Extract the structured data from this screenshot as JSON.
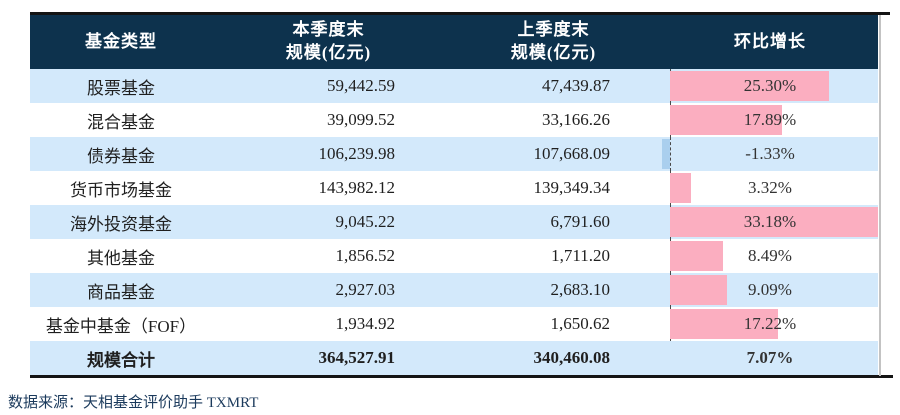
{
  "table": {
    "columns": [
      {
        "label": "基金类型"
      },
      {
        "label": "本季度末",
        "sub": "规模(亿元)"
      },
      {
        "label": "上季度末",
        "sub": "规模(亿元)"
      },
      {
        "label": "环比增长"
      }
    ],
    "rows": [
      {
        "fund_type": "股票基金",
        "current": "59,442.59",
        "previous": "47,439.87",
        "growth": "25.30%",
        "growth_value": 25.3
      },
      {
        "fund_type": "混合基金",
        "current": "39,099.52",
        "previous": "33,166.26",
        "growth": "17.89%",
        "growth_value": 17.89
      },
      {
        "fund_type": "债券基金",
        "current": "106,239.98",
        "previous": "107,668.09",
        "growth": "-1.33%",
        "growth_value": -1.33
      },
      {
        "fund_type": "货币市场基金",
        "current": "143,982.12",
        "previous": "139,349.34",
        "growth": "3.32%",
        "growth_value": 3.32
      },
      {
        "fund_type": "海外投资基金",
        "current": "9,045.22",
        "previous": "6,791.60",
        "growth": "33.18%",
        "growth_value": 33.18
      },
      {
        "fund_type": "其他基金",
        "current": "1,856.52",
        "previous": "1,711.20",
        "growth": "8.49%",
        "growth_value": 8.49
      },
      {
        "fund_type": "商品基金",
        "current": "2,927.03",
        "previous": "2,683.10",
        "growth": "9.09%",
        "growth_value": 9.09
      },
      {
        "fund_type": "基金中基金（FOF）",
        "current": "1,934.92",
        "previous": "1,650.62",
        "growth": "17.22%",
        "growth_value": 17.22
      }
    ],
    "total": {
      "fund_type": "规模合计",
      "current": "364,527.91",
      "previous": "340,460.08",
      "growth": "7.07%"
    }
  },
  "chart_data": {
    "type": "table",
    "title": "",
    "columns": [
      "基金类型",
      "本季度末规模(亿元)",
      "上季度末规模(亿元)",
      "环比增长"
    ],
    "categories": [
      "股票基金",
      "混合基金",
      "债券基金",
      "货币市场基金",
      "海外投资基金",
      "其他基金",
      "商品基金",
      "基金中基金（FOF）",
      "规模合计"
    ],
    "series": [
      {
        "name": "本季度末规模(亿元)",
        "values": [
          59442.59,
          39099.52,
          106239.98,
          143982.12,
          9045.22,
          1856.52,
          2927.03,
          1934.92,
          364527.91
        ]
      },
      {
        "name": "上季度末规模(亿元)",
        "values": [
          47439.87,
          33166.26,
          107668.09,
          139349.34,
          6791.6,
          1711.2,
          2683.1,
          1650.62,
          340460.08
        ]
      },
      {
        "name": "环比增长(%)",
        "values": [
          25.3,
          17.89,
          -1.33,
          3.32,
          33.18,
          8.49,
          9.09,
          17.22,
          7.07
        ]
      }
    ],
    "databar": {
      "column": "环比增长",
      "values": [
        25.3,
        17.89,
        -1.33,
        3.32,
        33.18,
        8.49,
        9.09,
        17.22
      ],
      "axis_min": -1.33,
      "axis_max": 33.18,
      "positive_color": "#fbaec0",
      "negative_color": "#aacfee",
      "axis_style": "dashed"
    },
    "colors": {
      "header_bg": "#0d324d",
      "header_text": "#ffffff",
      "alt_row_bg": "#d3e9fb",
      "row_bg": "#ffffff",
      "rule": "#141414"
    }
  },
  "footer": {
    "source": "数据来源：天相基金评价助手 TXMRT"
  }
}
